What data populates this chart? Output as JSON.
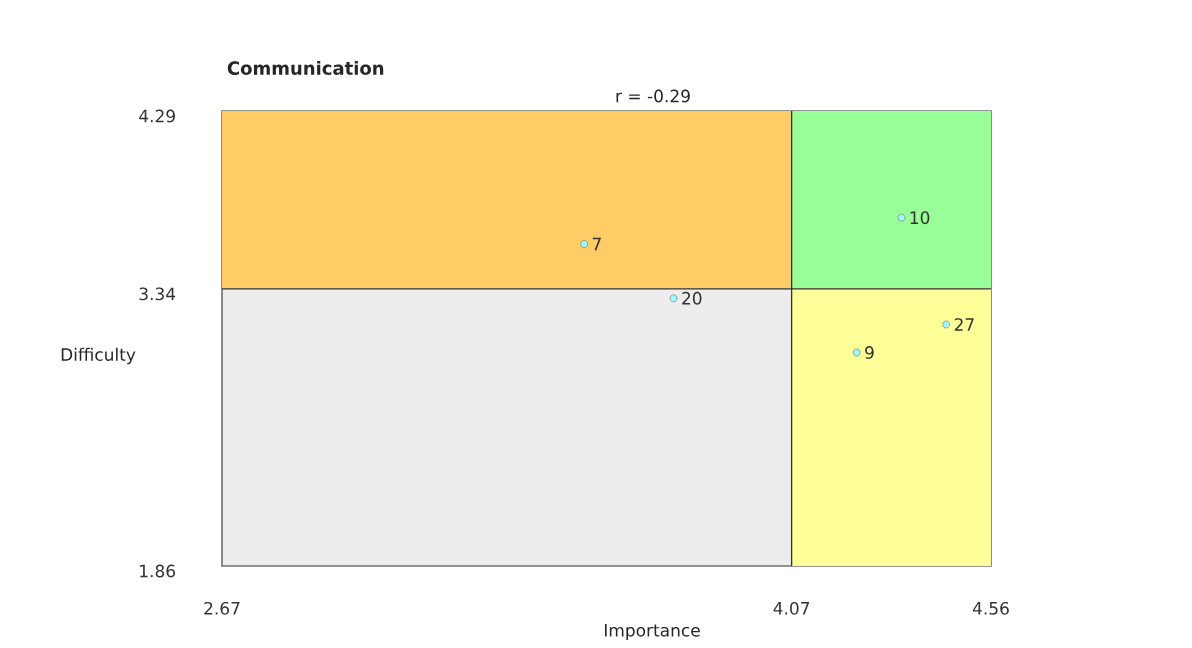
{
  "chart_data": {
    "type": "scatter",
    "title": "Communication",
    "subtitle": "r = -0.29",
    "xlabel": "Importance",
    "ylabel": "Difficulty",
    "xlim": [
      2.67,
      4.56
    ],
    "ylim": [
      1.86,
      4.29
    ],
    "xticks": [
      2.67,
      4.07,
      4.56
    ],
    "yticks": [
      1.86,
      3.34,
      4.29
    ],
    "x": [
      3.56,
      3.78,
      4.34,
      4.45,
      4.23
    ],
    "values": [
      3.58,
      3.29,
      3.72,
      3.15,
      3.0
    ],
    "color": "#99ffff",
    "marker": "circle",
    "annotations": [
      {
        "text": "7",
        "x": 3.56,
        "y": 3.58
      },
      {
        "text": "20",
        "x": 3.78,
        "y": 3.29
      },
      {
        "text": "10",
        "x": 4.34,
        "y": 3.72
      },
      {
        "text": "27",
        "x": 4.45,
        "y": 3.15
      },
      {
        "text": "9",
        "x": 4.23,
        "y": 3.0
      }
    ],
    "bands": [
      {
        "axis": "y",
        "from": 3.34,
        "to": 4.29,
        "color": "#ffcc66"
      },
      {
        "axis": "x",
        "from": 4.07,
        "to": 4.56,
        "color": "#ffff99"
      }
    ],
    "ref_lines": [
      {
        "axis": "x",
        "value": 4.07,
        "color": "#333333"
      },
      {
        "axis": "y",
        "value": 3.34,
        "color": "#333333"
      }
    ]
  }
}
